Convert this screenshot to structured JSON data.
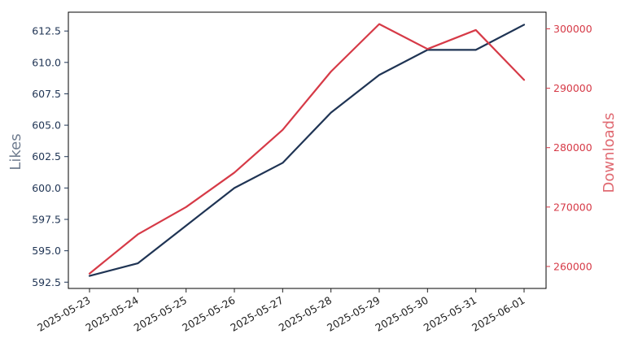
{
  "chart_data": {
    "type": "line",
    "title": "",
    "xlabel": "",
    "ylabel_left": "Likes",
    "ylabel_right": "Downloads",
    "grid": false,
    "legend": "none",
    "categories": [
      "2025-05-23",
      "2025-05-24",
      "2025-05-25",
      "2025-05-26",
      "2025-05-27",
      "2025-05-28",
      "2025-05-29",
      "2025-05-30",
      "2025-05-31",
      "2025-06-01"
    ],
    "series": [
      {
        "axis": "left",
        "color": "#1f3454",
        "values": [
          593,
          594,
          597,
          600,
          602,
          606,
          609,
          611,
          611,
          613
        ]
      },
      {
        "axis": "right",
        "color": "#d63a47",
        "values": [
          258800,
          265400,
          270000,
          275800,
          283000,
          292800,
          300800,
          296600,
          299800,
          291400
        ]
      }
    ],
    "ylim_left": [
      592,
      614
    ],
    "ylim_right": [
      256300,
      302800
    ],
    "yticks_left": [
      "592.5",
      "595.0",
      "597.5",
      "600.0",
      "602.5",
      "605.0",
      "607.5",
      "610.0",
      "612.5"
    ],
    "yticks_right": [
      "260000",
      "270000",
      "280000",
      "290000",
      "300000"
    ],
    "colors": {
      "left_axis": "#1f3454",
      "right_axis": "#d63a47",
      "left_title": "#6f7c8f",
      "right_title": "#e06a72",
      "x_axis": "#222222"
    }
  }
}
